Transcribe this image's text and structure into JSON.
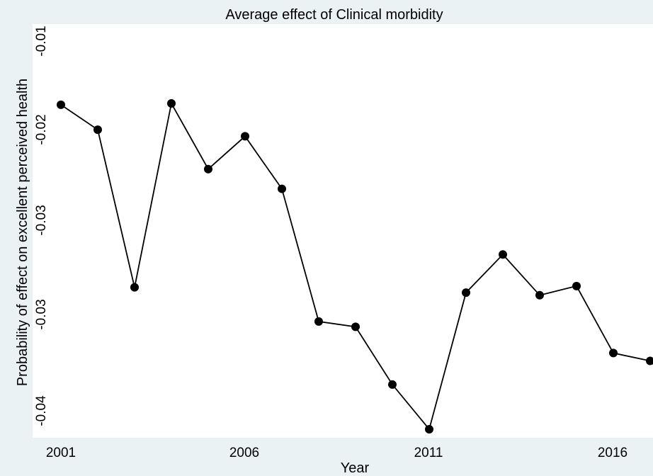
{
  "chart_data": {
    "type": "line",
    "title": "Average effect of Clinical morbidity",
    "xlabel": "Year",
    "ylabel": "Probability of effect on excellent perceived health",
    "x": [
      2001,
      2002,
      2003,
      2004,
      2005,
      2006,
      2007,
      2008,
      2009,
      2010,
      2011,
      2012,
      2013,
      2014,
      2015,
      2016,
      2017
    ],
    "series": [
      {
        "values": [
          -0.0178,
          -0.0197,
          -0.0317,
          -0.0177,
          -0.0227,
          -0.0202,
          -0.0242,
          -0.0343,
          -0.0347,
          -0.0391,
          -0.0425,
          -0.0321,
          -0.0292,
          -0.0323,
          -0.0316,
          -0.0367,
          -0.0373
        ]
      }
    ],
    "x_ticks": [
      "2001",
      "2006",
      "2011",
      "2016"
    ],
    "y_ticks": [
      "-0.01",
      "-0.02",
      "-0.03",
      "-0.03",
      "-0.04"
    ],
    "grid": false,
    "colors": {
      "background": "#eaf2f3",
      "plot_area": "#ffffff",
      "line": "#000000",
      "marker": "#000000"
    }
  }
}
